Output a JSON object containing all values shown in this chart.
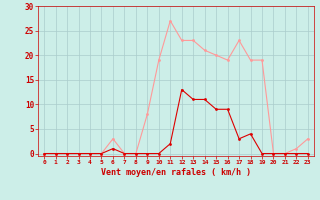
{
  "x": [
    0,
    1,
    2,
    3,
    4,
    5,
    6,
    7,
    8,
    9,
    10,
    11,
    12,
    13,
    14,
    15,
    16,
    17,
    18,
    19,
    20,
    21,
    22,
    23
  ],
  "y_moyen": [
    0,
    0,
    0,
    0,
    0,
    0,
    1,
    0,
    0,
    0,
    0,
    2,
    13,
    11,
    11,
    9,
    9,
    3,
    4,
    0,
    0,
    0,
    0,
    0
  ],
  "y_rafales": [
    0,
    0,
    0,
    0,
    0,
    0,
    3,
    0,
    0,
    8,
    19,
    27,
    23,
    23,
    21,
    20,
    19,
    23,
    19,
    19,
    0,
    0,
    1,
    3
  ],
  "color_moyen": "#dd0000",
  "color_rafales": "#ff9999",
  "bg_color": "#cceee8",
  "grid_color": "#aacccc",
  "xlabel": "Vent moyen/en rafales ( km/h )",
  "yticks": [
    0,
    5,
    10,
    15,
    20,
    25,
    30
  ],
  "xlim": [
    -0.5,
    23.5
  ],
  "ylim": [
    -0.5,
    30
  ],
  "xlabel_color": "#cc0000",
  "tick_color": "#cc0000",
  "spine_color": "#cc0000"
}
